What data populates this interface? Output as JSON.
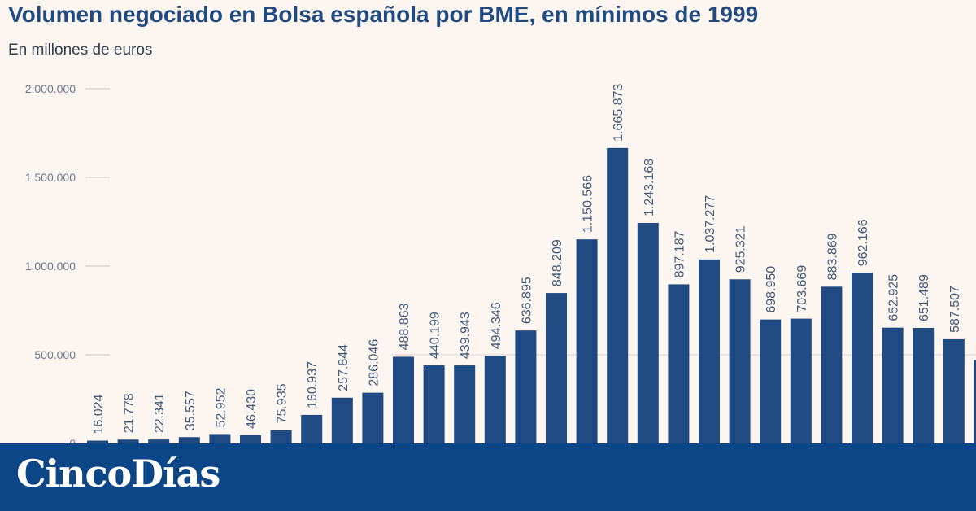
{
  "header": {
    "title": "Volumen negociado en Bolsa española por BME, en mínimos de 1999",
    "subtitle": "En millones de euros"
  },
  "footer": {
    "brand": "CincoDías"
  },
  "colors": {
    "bar": "#1f4b82",
    "label": "#3f5a7a",
    "axis_text": "#6c7a8c",
    "grid": "#d9d4d0",
    "background": "#fdf5ef",
    "footer": "#0c4686"
  },
  "chart_data": {
    "type": "bar",
    "title": "Volumen negociado en Bolsa española por BME, en mínimos de 1999",
    "subtitle": "En millones de euros",
    "ylim": [
      0,
      2000000
    ],
    "yticks": [
      0,
      500000,
      1000000,
      1500000,
      2000000
    ],
    "ytick_labels": [
      "0",
      "500.000",
      "1.000.000",
      "1.500.000",
      "2.000.000"
    ],
    "grid": "horizontal",
    "values": [
      16024,
      21778,
      22341,
      35557,
      52952,
      46430,
      75935,
      160937,
      257844,
      286046,
      488863,
      440199,
      439943,
      494346,
      636895,
      848209,
      1150566,
      1665873,
      1243168,
      897187,
      1037277,
      925321,
      698950,
      703669,
      883869,
      962166,
      652925,
      651489,
      587507,
      470000
    ],
    "value_labels": [
      "16.024",
      "21.778",
      "22.341",
      "35.557",
      "52.952",
      "46.430",
      "75.935",
      "160.937",
      "257.844",
      "286.046",
      "488.863",
      "440.199",
      "439.943",
      "494.346",
      "636.895",
      "848.209",
      "1.150.566",
      "1.665.873",
      "1.243.168",
      "897.187",
      "1.037.277",
      "925.321",
      "698.950",
      "703.669",
      "883.869",
      "962.166",
      "652.925",
      "651.489",
      "587.507",
      ""
    ]
  }
}
